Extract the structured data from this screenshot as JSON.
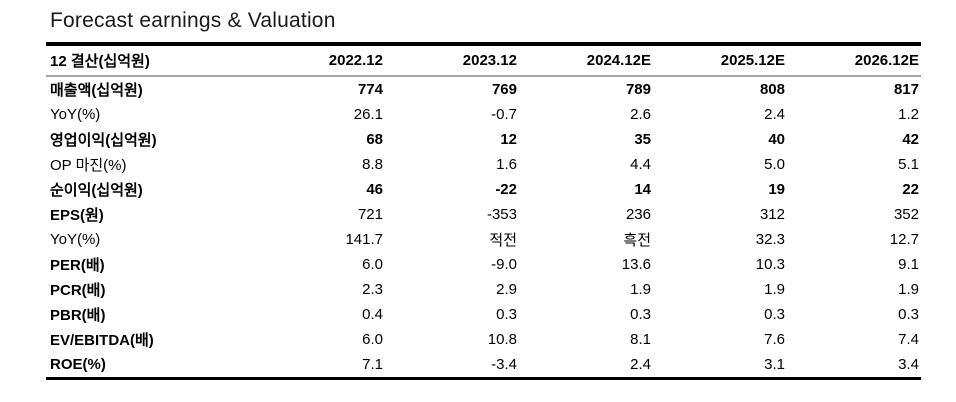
{
  "title": "Forecast earnings & Valuation",
  "table": {
    "columns": [
      "12 결산(십억원)",
      "2022.12",
      "2023.12",
      "2024.12E",
      "2025.12E",
      "2026.12E"
    ],
    "rows": [
      {
        "label": "매출액(십억원)",
        "values": [
          "774",
          "769",
          "789",
          "808",
          "817"
        ],
        "emphasis": "bold-all"
      },
      {
        "label": "YoY(%)",
        "values": [
          "26.1",
          "-0.7",
          "2.6",
          "2.4",
          "1.2"
        ],
        "emphasis": "regular"
      },
      {
        "label": "영업이익(십억원)",
        "values": [
          "68",
          "12",
          "35",
          "40",
          "42"
        ],
        "emphasis": "bold-all"
      },
      {
        "label": "OP 마진(%)",
        "values": [
          "8.8",
          "1.6",
          "4.4",
          "5.0",
          "5.1"
        ],
        "emphasis": "regular"
      },
      {
        "label": "순이익(십억원)",
        "values": [
          "46",
          "-22",
          "14",
          "19",
          "22"
        ],
        "emphasis": "bold-all"
      },
      {
        "label": "EPS(원)",
        "values": [
          "721",
          "-353",
          "236",
          "312",
          "352"
        ],
        "emphasis": "bold-label"
      },
      {
        "label": "YoY(%)",
        "values": [
          "141.7",
          "적전",
          "흑전",
          "32.3",
          "12.7"
        ],
        "emphasis": "regular"
      },
      {
        "label": "PER(배)",
        "values": [
          "6.0",
          "-9.0",
          "13.6",
          "10.3",
          "9.1"
        ],
        "emphasis": "bold-label"
      },
      {
        "label": "PCR(배)",
        "values": [
          "2.3",
          "2.9",
          "1.9",
          "1.9",
          "1.9"
        ],
        "emphasis": "bold-label"
      },
      {
        "label": "PBR(배)",
        "values": [
          "0.4",
          "0.3",
          "0.3",
          "0.3",
          "0.3"
        ],
        "emphasis": "bold-label"
      },
      {
        "label": "EV/EBITDA(배)",
        "values": [
          "6.0",
          "10.8",
          "8.1",
          "7.6",
          "7.4"
        ],
        "emphasis": "bold-label"
      },
      {
        "label": "ROE(%)",
        "values": [
          "7.1",
          "-3.4",
          "2.4",
          "3.1",
          "3.4"
        ],
        "emphasis": "bold-label"
      }
    ],
    "colors": {
      "heavy_border": "#000000",
      "light_border": "#a6a6a6",
      "text": "#000000",
      "background": "#ffffff"
    }
  }
}
